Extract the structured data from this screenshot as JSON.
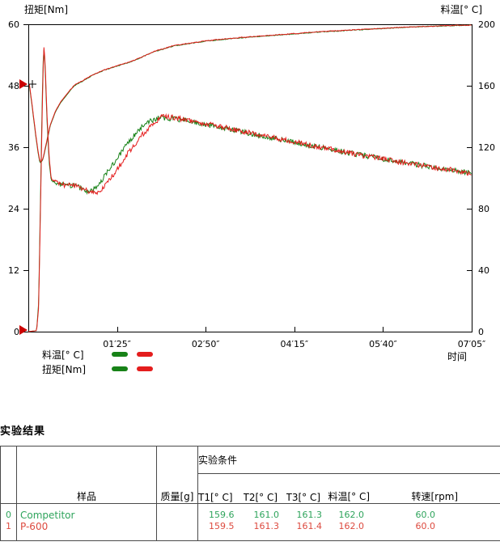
{
  "chart_data": {
    "type": "line",
    "title": "",
    "grid": false,
    "x_axis": {
      "label": "时间",
      "tick_labels": [
        "01′25″",
        "02′50″",
        "04′15″",
        "05′40″",
        "07′05″"
      ],
      "tick_seconds": [
        85,
        170,
        255,
        340,
        425
      ],
      "range_seconds": [
        0,
        425
      ]
    },
    "left_axis": {
      "label": "扭矩[Nm]",
      "ticks": [
        0,
        12,
        24,
        36,
        48,
        60
      ],
      "range": [
        0,
        60
      ]
    },
    "right_axis": {
      "label": "料温[° C]",
      "ticks": [
        0,
        40,
        80,
        120,
        160,
        200
      ],
      "range": [
        0,
        200
      ]
    },
    "legend": {
      "rows": [
        {
          "label": "料温[° C]"
        },
        {
          "label": "扭矩[Nm]"
        }
      ],
      "colors": [
        "#178217",
        "#e41d1d"
      ]
    },
    "markers": {
      "left_axis_triangle_values": [
        48,
        0
      ],
      "plus_marker_value": 48,
      "triangle_color": "#cc0000"
    },
    "series": [
      {
        "name": "料温 Competitor",
        "color": "#178217",
        "axis": "right",
        "noise": 0.25,
        "noise_from": 40,
        "points": [
          [
            1,
            160
          ],
          [
            3,
            150
          ],
          [
            5,
            139
          ],
          [
            7,
            128
          ],
          [
            9,
            118
          ],
          [
            11,
            110
          ],
          [
            12,
            110
          ],
          [
            14,
            112
          ],
          [
            17,
            121
          ],
          [
            21,
            134
          ],
          [
            26,
            143
          ],
          [
            31,
            149
          ],
          [
            38,
            155
          ],
          [
            44,
            160
          ],
          [
            52,
            163
          ],
          [
            62,
            167
          ],
          [
            72,
            170
          ],
          [
            86,
            173
          ],
          [
            100,
            176
          ],
          [
            120,
            182
          ],
          [
            140,
            186
          ],
          [
            170,
            189
          ],
          [
            200,
            191
          ],
          [
            240,
            193
          ],
          [
            280,
            195
          ],
          [
            320,
            196.5
          ],
          [
            360,
            198
          ],
          [
            400,
            199
          ],
          [
            425,
            199.4
          ]
        ]
      },
      {
        "name": "料温 P-600",
        "color": "#e41d1d",
        "axis": "right",
        "noise": 0.25,
        "noise_from": 40,
        "points": [
          [
            1,
            161
          ],
          [
            3,
            151
          ],
          [
            5,
            140
          ],
          [
            7,
            129
          ],
          [
            9,
            119
          ],
          [
            11,
            111
          ],
          [
            12,
            110.5
          ],
          [
            14,
            112.5
          ],
          [
            17,
            122
          ],
          [
            21,
            134.5
          ],
          [
            26,
            143.5
          ],
          [
            31,
            149.5
          ],
          [
            38,
            155.5
          ],
          [
            44,
            160.3
          ],
          [
            52,
            163.3
          ],
          [
            62,
            167.2
          ],
          [
            72,
            170.2
          ],
          [
            86,
            173.2
          ],
          [
            100,
            176.2
          ],
          [
            120,
            182.2
          ],
          [
            140,
            186.2
          ],
          [
            170,
            189.2
          ],
          [
            200,
            191.2
          ],
          [
            240,
            193.2
          ],
          [
            280,
            195.2
          ],
          [
            320,
            196.6
          ],
          [
            360,
            198.1
          ],
          [
            400,
            199.1
          ],
          [
            425,
            199.5
          ]
        ]
      },
      {
        "name": "扭矩 Competitor",
        "color": "#178217",
        "axis": "left",
        "noise": 0.5,
        "noise_from": 24,
        "points": [
          [
            0,
            0
          ],
          [
            8,
            0.2
          ],
          [
            10,
            6
          ],
          [
            12,
            30
          ],
          [
            14,
            52
          ],
          [
            15,
            55
          ],
          [
            16,
            52
          ],
          [
            18,
            41
          ],
          [
            20,
            33
          ],
          [
            22,
            29.5
          ],
          [
            28,
            28.8
          ],
          [
            35,
            28.5
          ],
          [
            42,
            28.6
          ],
          [
            48,
            28.2
          ],
          [
            54,
            27.6
          ],
          [
            58,
            27.3
          ],
          [
            62,
            27.6
          ],
          [
            66,
            28.5
          ],
          [
            72,
            30
          ],
          [
            78,
            31.8
          ],
          [
            85,
            33.8
          ],
          [
            92,
            35.8
          ],
          [
            100,
            38
          ],
          [
            108,
            39.8
          ],
          [
            116,
            41
          ],
          [
            126,
            41.8
          ],
          [
            136,
            41.6
          ],
          [
            150,
            41.2
          ],
          [
            165,
            40.6
          ],
          [
            180,
            40
          ],
          [
            195,
            39.4
          ],
          [
            215,
            38.6
          ],
          [
            235,
            37.8
          ],
          [
            255,
            37
          ],
          [
            275,
            36.2
          ],
          [
            295,
            35.4
          ],
          [
            315,
            34.6
          ],
          [
            335,
            33.9
          ],
          [
            355,
            33.2
          ],
          [
            375,
            32.5
          ],
          [
            395,
            31.9
          ],
          [
            415,
            31.3
          ],
          [
            425,
            31
          ]
        ]
      },
      {
        "name": "扭矩 P-600",
        "color": "#e41d1d",
        "axis": "left",
        "noise": 0.5,
        "noise_from": 24,
        "points": [
          [
            0,
            0
          ],
          [
            8,
            0.2
          ],
          [
            10,
            5
          ],
          [
            12,
            28
          ],
          [
            14,
            50
          ],
          [
            15,
            55.5
          ],
          [
            16,
            53
          ],
          [
            18,
            42
          ],
          [
            20,
            34
          ],
          [
            22,
            29.8
          ],
          [
            28,
            28.9
          ],
          [
            35,
            28.6
          ],
          [
            42,
            28.7
          ],
          [
            48,
            28.3
          ],
          [
            55,
            27.7
          ],
          [
            60,
            27.2
          ],
          [
            64,
            27
          ],
          [
            68,
            27.4
          ],
          [
            74,
            28.6
          ],
          [
            80,
            30.2
          ],
          [
            87,
            32.2
          ],
          [
            94,
            34.4
          ],
          [
            102,
            36.6
          ],
          [
            110,
            38.6
          ],
          [
            118,
            40.2
          ],
          [
            128,
            42
          ],
          [
            138,
            41.8
          ],
          [
            152,
            41.3
          ],
          [
            167,
            40.7
          ],
          [
            182,
            40.1
          ],
          [
            197,
            39.5
          ],
          [
            217,
            38.6
          ],
          [
            237,
            37.8
          ],
          [
            257,
            37
          ],
          [
            277,
            36.1
          ],
          [
            297,
            35.3
          ],
          [
            317,
            34.5
          ],
          [
            337,
            33.8
          ],
          [
            357,
            33.1
          ],
          [
            377,
            32.4
          ],
          [
            397,
            31.8
          ],
          [
            417,
            31.2
          ],
          [
            425,
            30.9
          ]
        ]
      }
    ]
  },
  "results": {
    "heading": "实验结果",
    "table": {
      "col_headers": {
        "index": "",
        "sample": "样品",
        "mass": "质量[g]",
        "conditions": "实验条件",
        "t1": "T1[° C]",
        "t2": "T2[° C]",
        "t3": "T3[° C]",
        "mat_temp": "料温[° C]",
        "speed": "转速[rpm]"
      },
      "rows": [
        {
          "index": "0",
          "sample": "Competitor",
          "mass": "",
          "t1": "159.6",
          "t2": "161.0",
          "t3": "161.3",
          "mat_temp": "162.0",
          "speed": "60.0",
          "color": "#2fa45c"
        },
        {
          "index": "1",
          "sample": "P-600",
          "mass": "",
          "t1": "159.5",
          "t2": "161.3",
          "t3": "161.4",
          "mat_temp": "162.0",
          "speed": "60.0",
          "color": "#dd4a3f"
        }
      ]
    }
  }
}
